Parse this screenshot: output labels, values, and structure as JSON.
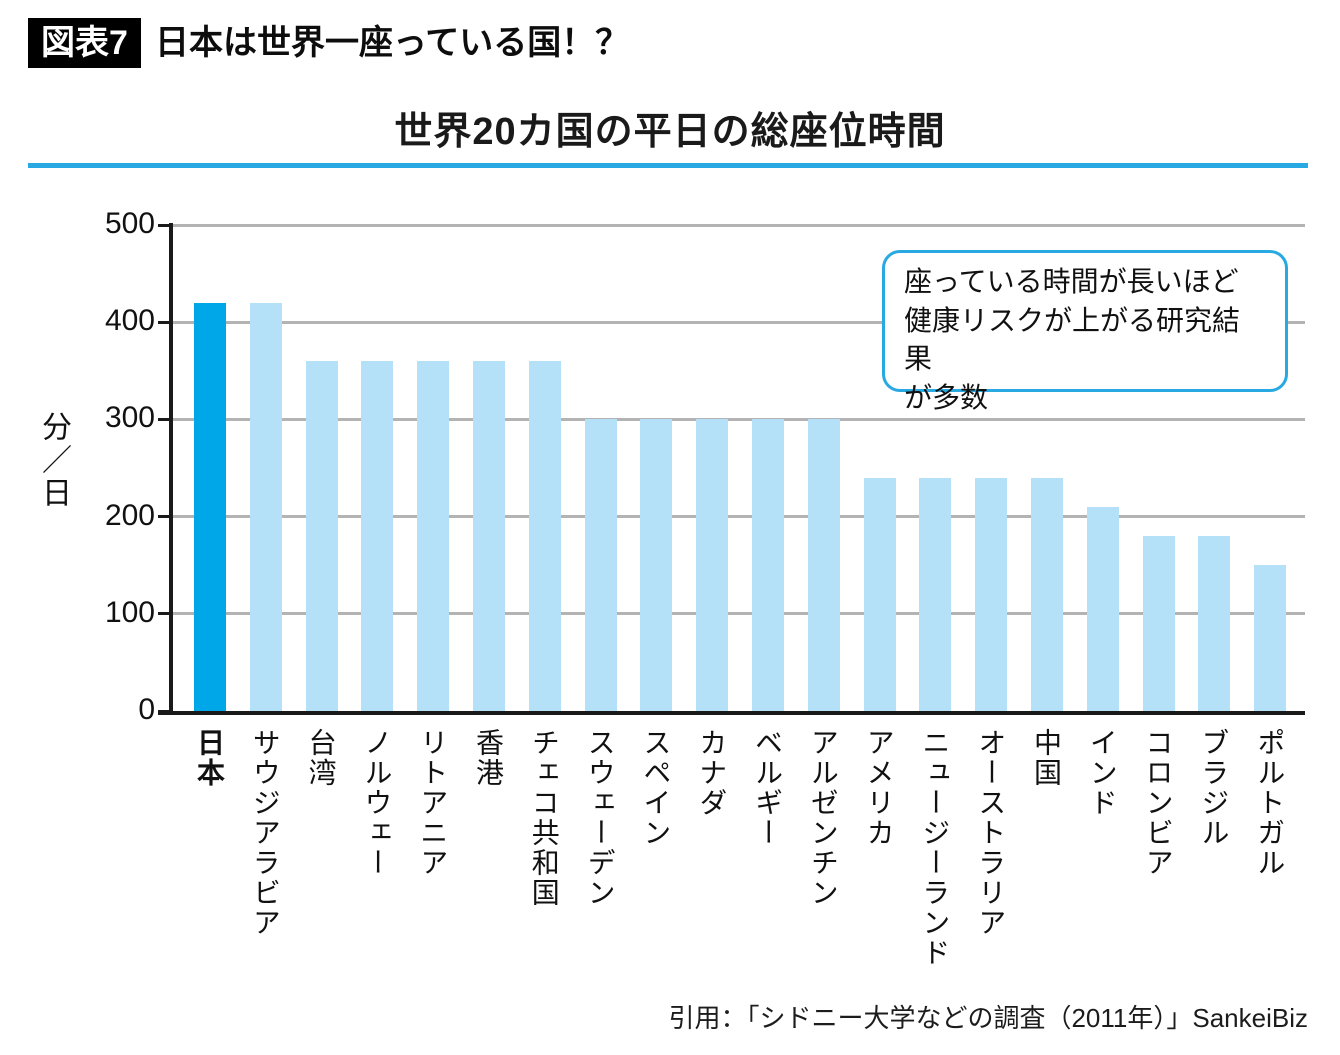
{
  "header": {
    "badge": "図表7",
    "heading": "日本は世界一座っている国！？"
  },
  "chart_data": {
    "type": "bar",
    "title": "世界20カ国の平日の総座位時間",
    "ylabel": "分／日",
    "xlabel": "",
    "ylim": [
      0,
      500
    ],
    "yticks": [
      0,
      100,
      200,
      300,
      400,
      500
    ],
    "grid": true,
    "legend": "none",
    "categories": [
      "日本",
      "サウジアラビア",
      "台湾",
      "ノルウェー",
      "リトアニア",
      "香港",
      "チェコ共和国",
      "スウェーデン",
      "スペイン",
      "カナダ",
      "ベルギー",
      "アルゼンチン",
      "アメリカ",
      "ニュージーランド",
      "オーストラリア",
      "中国",
      "インド",
      "コロンビア",
      "ブラジル",
      "ポルトガル"
    ],
    "values": [
      420,
      420,
      360,
      360,
      360,
      360,
      360,
      300,
      300,
      300,
      300,
      300,
      240,
      240,
      240,
      240,
      210,
      180,
      180,
      150
    ],
    "highlight_index": 0,
    "bar_color": "#b5e1f8",
    "highlight_color": "#00a7e8",
    "grid_color": "#b3b3b3",
    "axis_color": "#1a1a1a"
  },
  "annotation": {
    "text": "座っている時間が長いほど\n健康リスクが上がる研究結果\nが多数",
    "border_color": "#29a9e2"
  },
  "colors": {
    "accent_line": "#29a9e2"
  },
  "citation": "引用：「シドニー大学などの調査（2011年）」SankeiBiz"
}
